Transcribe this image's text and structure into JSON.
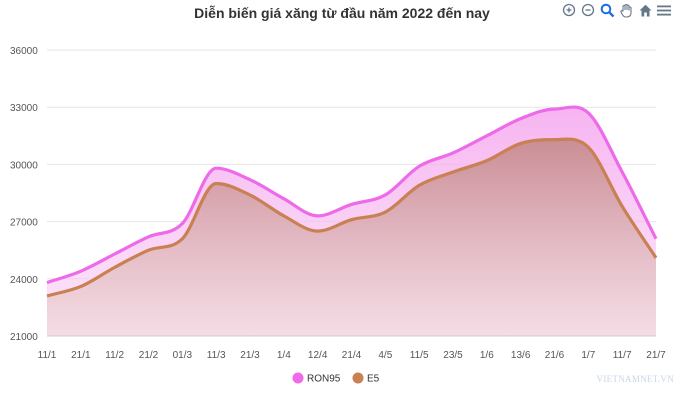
{
  "colors": {
    "ron95": "#ee6ae8",
    "e5": "#c98052",
    "grid": "#e6e6e6",
    "toolbar": "#667788"
  },
  "toolbar": {
    "icons": [
      "zoom-in-icon",
      "zoom-out-icon",
      "magnifier-icon",
      "pan-hand-icon",
      "home-icon",
      "menu-icon"
    ]
  },
  "watermark": "VIETNAMNET.VN",
  "chart_data": {
    "type": "area",
    "title": "Diễn biến giá xăng từ đầu năm 2022 đến nay",
    "xlabel": "",
    "ylabel": "",
    "ylim": [
      21000,
      36000
    ],
    "yticks": [
      21000,
      24000,
      27000,
      30000,
      33000,
      36000
    ],
    "categories": [
      "11/1",
      "21/1",
      "11/2",
      "21/2",
      "01/3",
      "11/3",
      "21/3",
      "1/4",
      "12/4",
      "21/4",
      "4/5",
      "11/5",
      "23/5",
      "1/6",
      "13/6",
      "21/6",
      "1/7",
      "11/7",
      "21/7"
    ],
    "series": [
      {
        "name": "RON95",
        "values": [
          23800,
          24400,
          25300,
          26200,
          26900,
          29800,
          29200,
          28200,
          27300,
          27900,
          28400,
          29900,
          30600,
          31500,
          32400,
          32900,
          32700,
          29600,
          26100
        ]
      },
      {
        "name": "E5",
        "values": [
          23100,
          23600,
          24600,
          25500,
          26100,
          29000,
          28400,
          27300,
          26500,
          27100,
          27500,
          28900,
          29600,
          30200,
          31100,
          31300,
          30900,
          27800,
          25100
        ]
      }
    ],
    "legend_position": "bottom-center",
    "grid": true
  }
}
